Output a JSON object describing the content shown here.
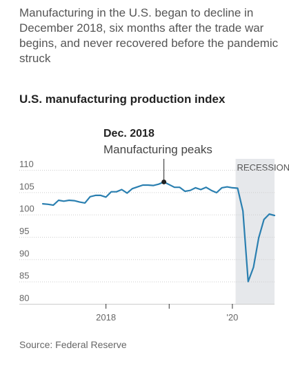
{
  "subtitle": "Manufacturing in the U.S. began to decline in December 2018, six months after the trade war begins, and never recovered before the pandemic struck",
  "source": "Source: Federal Reserve",
  "colors": {
    "line": "#2a7fb0",
    "recession": "#e6e8eb",
    "grid": "#cccccc",
    "tick_text": "#666666"
  },
  "chart_data": {
    "type": "line",
    "title": "U.S. manufacturing production index",
    "xlabel": "",
    "ylabel": "",
    "ylim": [
      80,
      110
    ],
    "xlim": [
      "2017-01",
      "2020-09"
    ],
    "yticks": [
      110,
      105,
      100,
      95,
      90,
      85,
      80
    ],
    "xticks": [
      {
        "date": "2018-01",
        "label": "2018"
      },
      {
        "date": "2019-01",
        "label": ""
      },
      {
        "date": "2020-01",
        "label": "'20"
      }
    ],
    "grid": true,
    "recession": {
      "start": "2020-02",
      "end": "2020-09",
      "label": "RECESSION"
    },
    "annotation": {
      "date": "2018-12",
      "value": 107.3,
      "title": "Dec. 2018",
      "text": "Manufacturing peaks"
    },
    "series": [
      {
        "name": "",
        "x": [
          "2017-01",
          "2017-02",
          "2017-03",
          "2017-04",
          "2017-05",
          "2017-06",
          "2017-07",
          "2017-08",
          "2017-09",
          "2017-10",
          "2017-11",
          "2017-12",
          "2018-01",
          "2018-02",
          "2018-03",
          "2018-04",
          "2018-05",
          "2018-06",
          "2018-07",
          "2018-08",
          "2018-09",
          "2018-10",
          "2018-11",
          "2018-12",
          "2019-01",
          "2019-02",
          "2019-03",
          "2019-04",
          "2019-05",
          "2019-06",
          "2019-07",
          "2019-08",
          "2019-09",
          "2019-10",
          "2019-11",
          "2019-12",
          "2020-01",
          "2020-02",
          "2020-03",
          "2020-04",
          "2020-05",
          "2020-06",
          "2020-07",
          "2020-08",
          "2020-09"
        ],
        "values": [
          102.4,
          102.3,
          102.1,
          103.2,
          103.0,
          103.2,
          103.1,
          102.8,
          102.6,
          104.0,
          104.3,
          104.3,
          103.9,
          105.1,
          105.1,
          105.6,
          104.8,
          105.8,
          106.2,
          106.6,
          106.6,
          106.5,
          106.8,
          107.3,
          106.7,
          106.1,
          106.1,
          105.2,
          105.4,
          106.0,
          105.6,
          106.1,
          105.4,
          104.9,
          106.0,
          106.2,
          106.0,
          105.9,
          100.8,
          85.0,
          88.2,
          94.8,
          98.9,
          100.1,
          99.8
        ]
      }
    ]
  }
}
